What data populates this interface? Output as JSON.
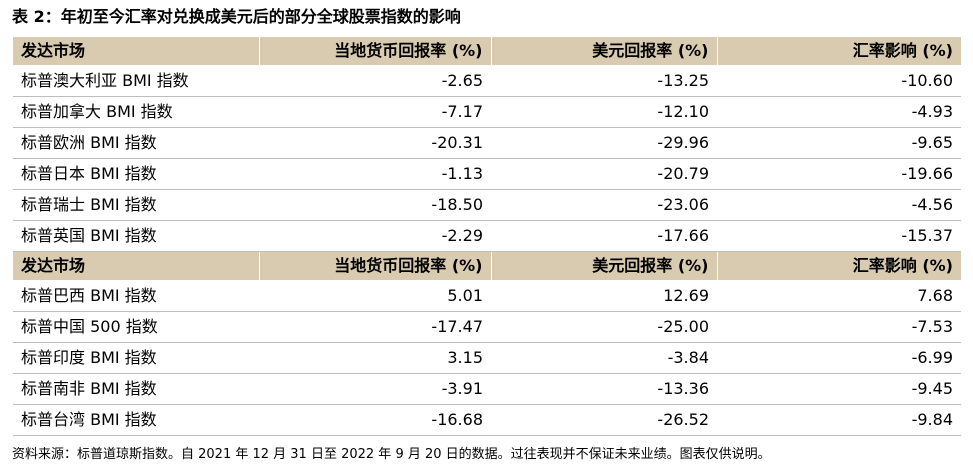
{
  "title": "表 2：年初至今汇率对兑换成美元后的部分全球股票指数的影响",
  "table1": {
    "headers": [
      "发达市场",
      "当地货币回报率 (%)",
      "美元回报率 (%)",
      "汇率影响 (%)"
    ],
    "rows": [
      [
        "标普澳大利亚 BMI 指数",
        "-2.65",
        "-13.25",
        "-10.60"
      ],
      [
        "标普加拿大 BMI 指数",
        "-7.17",
        "-12.10",
        "-4.93"
      ],
      [
        "标普欧洲 BMI 指数",
        "-20.31",
        "-29.96",
        "-9.65"
      ],
      [
        "标普日本 BMI 指数",
        "-1.13",
        "-20.79",
        "-19.66"
      ],
      [
        "标普瑞士 BMI 指数",
        "-18.50",
        "-23.06",
        "-4.56"
      ],
      [
        "标普英国 BMI 指数",
        "-2.29",
        "-17.66",
        "-15.37"
      ]
    ]
  },
  "table2": {
    "headers": [
      "发达市场",
      "当地货币回报率 (%)",
      "美元回报率 (%)",
      "汇率影响 (%)"
    ],
    "rows": [
      [
        "标普巴西 BMI 指数",
        "5.01",
        "12.69",
        "7.68"
      ],
      [
        "标普中国 500 指数",
        "-17.47",
        "-25.00",
        "-7.53"
      ],
      [
        "标普印度 BMI 指数",
        "3.15",
        "-3.84",
        "-6.99"
      ],
      [
        "标普南非 BMI 指数",
        "-3.91",
        "-13.36",
        "-9.45"
      ],
      [
        "标普台湾 BMI 指数",
        "-16.68",
        "-26.52",
        "-9.84"
      ]
    ]
  },
  "footnote": "资料来源：标普道琼斯指数。自 2021 年 12 月 31 日至 2022 年 9 月 20 日的数据。过往表现并不保证未来业绩。图表仅供说明。",
  "colors": {
    "header_background": "#d8cbb0",
    "row_divider": "#bdbdbd"
  }
}
